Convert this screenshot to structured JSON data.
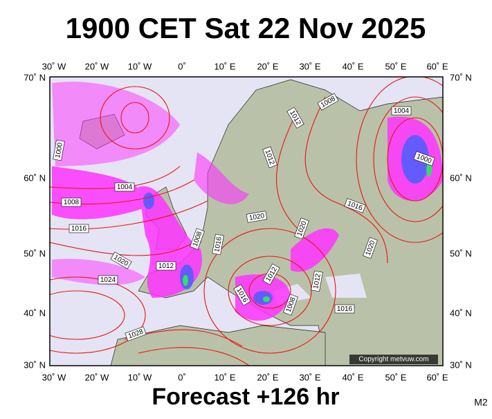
{
  "header": {
    "title": "1900 CET Sat 22 Nov 2025"
  },
  "longitudes": [
    "30˚ W",
    "20˚ W",
    "10˚ W",
    "0˚",
    "10˚ E",
    "20˚ E",
    "30˚ E",
    "40˚ E",
    "50˚ E",
    "60˚ E"
  ],
  "latitudes": [
    "70˚ N",
    "60˚ N",
    "50˚ N",
    "40˚ N",
    "30˚ N"
  ],
  "isobar_labels": [
    "1008",
    "1004",
    "1012",
    "1000",
    "1012",
    "1000",
    "1004",
    "1008",
    "1016",
    "1020",
    "1016",
    "1020",
    "1008",
    "1016",
    "1020",
    "1020",
    "1012",
    "1012",
    "1024",
    "1012",
    "1016",
    "1008",
    "1016",
    "1028"
  ],
  "copyright": "Copyright metvuw.com",
  "footer": "Forecast +126 hr",
  "corner": "M2"
}
